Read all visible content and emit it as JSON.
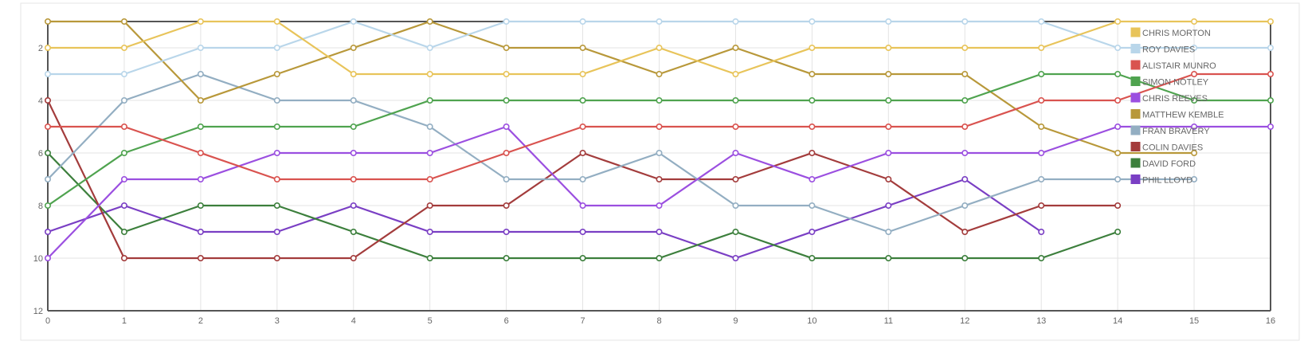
{
  "chart_data": {
    "type": "line",
    "title": "",
    "xlabel": "",
    "ylabel": "",
    "x": [
      0,
      1,
      2,
      3,
      4,
      5,
      6,
      7,
      8,
      9,
      10,
      11,
      12,
      13,
      14,
      15,
      16
    ],
    "xlim": [
      0,
      16
    ],
    "ylim": [
      12,
      1
    ],
    "y_reversed": true,
    "yticks": [
      2,
      4,
      6,
      8,
      10,
      12
    ],
    "grid": true,
    "legend_position": "top-right",
    "series": [
      {
        "name": "CHRIS MORTON",
        "color": "#e8c45a",
        "values": [
          2,
          2,
          1,
          1,
          3,
          3,
          3,
          3,
          2,
          3,
          2,
          2,
          2,
          2,
          1,
          1,
          1
        ]
      },
      {
        "name": "ROY DAVIES",
        "color": "#b9d6ea",
        "values": [
          3,
          3,
          2,
          2,
          1,
          2,
          1,
          1,
          1,
          1,
          1,
          1,
          1,
          1,
          2,
          2,
          2
        ]
      },
      {
        "name": "ALISTAIR MUNRO",
        "color": "#d9534f",
        "values": [
          5,
          5,
          6,
          7,
          7,
          7,
          6,
          5,
          5,
          5,
          5,
          5,
          5,
          4,
          4,
          3,
          3
        ]
      },
      {
        "name": "SIMON NOTLEY",
        "color": "#4fa34f",
        "values": [
          8,
          6,
          5,
          5,
          5,
          4,
          4,
          4,
          4,
          4,
          4,
          4,
          4,
          3,
          3,
          4,
          4
        ]
      },
      {
        "name": "CHRIS REEVES",
        "color": "#9b4fe0",
        "values": [
          10,
          7,
          7,
          6,
          6,
          6,
          5,
          8,
          8,
          6,
          7,
          6,
          6,
          6,
          5,
          5,
          5
        ]
      },
      {
        "name": "MATTHEW KEMBLE",
        "color": "#b8983a",
        "values": [
          1,
          1,
          4,
          3,
          2,
          1,
          2,
          2,
          3,
          2,
          3,
          3,
          3,
          5,
          6,
          6,
          null
        ]
      },
      {
        "name": "FRAN BRAVERY",
        "color": "#93aec2",
        "values": [
          7,
          4,
          3,
          4,
          4,
          5,
          7,
          7,
          6,
          8,
          8,
          9,
          8,
          7,
          7,
          7,
          null
        ]
      },
      {
        "name": "COLIN DAVIES",
        "color": "#a33c3c",
        "values": [
          4,
          10,
          10,
          10,
          10,
          8,
          8,
          6,
          7,
          7,
          6,
          7,
          9,
          8,
          8,
          null,
          null
        ]
      },
      {
        "name": "DAVID FORD",
        "color": "#3c7f3c",
        "values": [
          6,
          9,
          8,
          8,
          9,
          10,
          10,
          10,
          10,
          9,
          10,
          10,
          10,
          10,
          9,
          null,
          null
        ]
      },
      {
        "name": "PHIL LLOYD",
        "color": "#7a3fc4",
        "values": [
          9,
          8,
          9,
          9,
          8,
          9,
          9,
          9,
          9,
          10,
          9,
          8,
          7,
          9,
          null,
          null,
          null
        ]
      }
    ]
  }
}
